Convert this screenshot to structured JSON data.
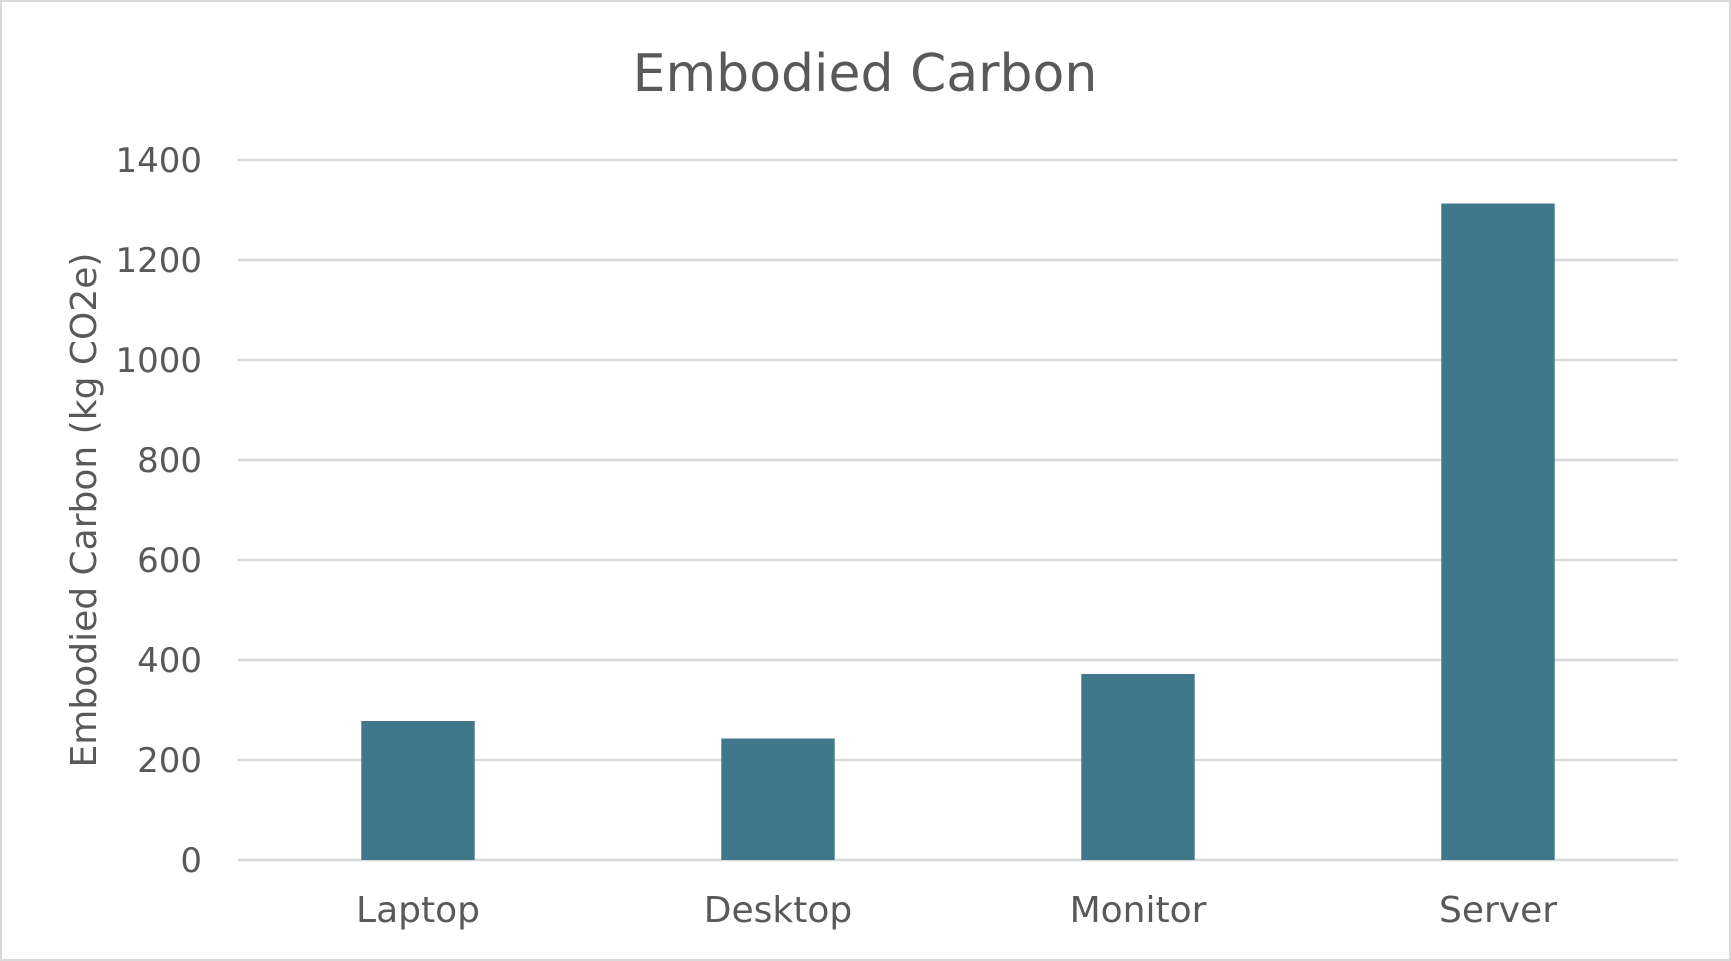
{
  "chart_data": {
    "type": "bar",
    "title": "Embodied Carbon",
    "xlabel": "",
    "ylabel": "Embodied Carbon (kg CO2e)",
    "categories": [
      "Laptop",
      "Desktop",
      "Monitor",
      "Server"
    ],
    "values": [
      278,
      243,
      372,
      1313
    ],
    "ylim": [
      0,
      1400
    ],
    "yticks": [
      0,
      200,
      400,
      600,
      800,
      1000,
      1200,
      1400
    ],
    "grid": true,
    "legend": "none",
    "colors": {
      "bar": "#41778a",
      "grid": "#d9d9d9",
      "text": "#595959"
    }
  }
}
